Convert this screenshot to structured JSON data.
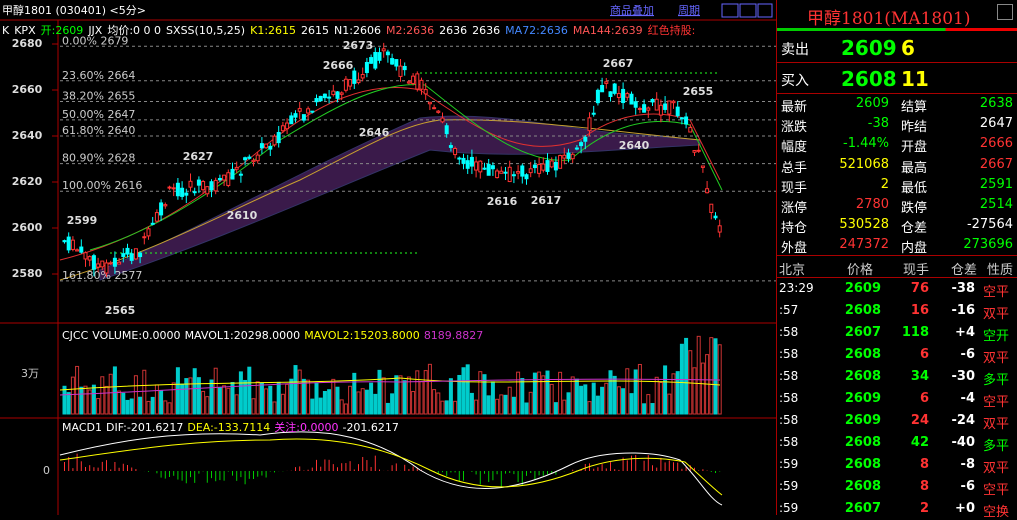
{
  "header": {
    "title": "甲醇1801 (030401) <5分>",
    "links": [
      "商品叠加",
      "周期"
    ]
  },
  "chart": {
    "indicator": [
      "K",
      "KPX",
      "开:2609",
      "JJX",
      "均价:0 0 0",
      "SXSS(10,5,25)",
      "K1:2615",
      "2615",
      "N1:2606",
      "M2:2636",
      "2636",
      "2636",
      "MA72:2636",
      "MA144:2639",
      "红色持股:"
    ],
    "y_axis": [
      2680,
      2660,
      2640,
      2620,
      2600,
      2580
    ],
    "fib": [
      {
        "label": "0.00% 2679",
        "value": 2679
      },
      {
        "label": "23.60% 2664",
        "value": 2664
      },
      {
        "label": "38.20% 2655",
        "value": 2655
      },
      {
        "label": "50.00% 2647",
        "value": 2647
      },
      {
        "label": "61.80% 2640",
        "value": 2640
      },
      {
        "label": "80.90% 2628",
        "value": 2628
      },
      {
        "label": "100.00% 2616",
        "value": 2616
      },
      {
        "label": "161.80% 2577",
        "value": 2577
      }
    ],
    "price_labels": [
      "2673",
      "2666",
      "2667",
      "2655",
      "2646",
      "2640",
      "2627",
      "2610",
      "2599",
      "2616",
      "2617",
      "2565"
    ],
    "volume_header": [
      "CJCC",
      "VOLUME:0.0000",
      "MAVOL1:20298.0000",
      "MAVOL2:15203.8000",
      "8189.8827"
    ],
    "volume_axis": "3万",
    "macd_header": [
      "MACD1",
      "DIF:-201.6217",
      "DEA:-133.7114",
      "关注:0.0000",
      "-201.6217"
    ],
    "macd_axis": "0"
  },
  "quote": {
    "title": "甲醇1801(MA1801)",
    "sell": {
      "label": "卖出",
      "price": "2609",
      "volume": "6"
    },
    "buy": {
      "label": "买入",
      "price": "2608",
      "volume": "11"
    },
    "rows": [
      [
        "最新",
        "2609",
        "结算",
        "2638"
      ],
      [
        "涨跌",
        "-38",
        "昨结",
        "2647"
      ],
      [
        "幅度",
        "-1.44%",
        "开盘",
        "2666"
      ],
      [
        "总手",
        "521068",
        "最高",
        "2667"
      ],
      [
        "现手",
        "2",
        "最低",
        "2591"
      ],
      [
        "涨停",
        "2780",
        "跌停",
        "2514"
      ],
      [
        "持仓",
        "530528",
        "仓差",
        "-27564"
      ],
      [
        "外盘",
        "247372",
        "内盘",
        "273696"
      ]
    ],
    "tick_header": [
      "北京",
      "价格",
      "现手",
      "仓差",
      "性质"
    ],
    "ticks": [
      [
        "23:29",
        "2609",
        "76",
        "-38",
        "空平"
      ],
      [
        ":57",
        "2608",
        "16",
        "-16",
        "双平"
      ],
      [
        ":58",
        "2607",
        "118",
        "+4",
        "空开"
      ],
      [
        ":58",
        "2608",
        "6",
        "-6",
        "双平"
      ],
      [
        ":58",
        "2608",
        "34",
        "-30",
        "多平"
      ],
      [
        ":58",
        "2609",
        "6",
        "-4",
        "空平"
      ],
      [
        ":58",
        "2609",
        "24",
        "-24",
        "双平"
      ],
      [
        ":58",
        "2608",
        "42",
        "-40",
        "多平"
      ],
      [
        ":59",
        "2608",
        "8",
        "-8",
        "双平"
      ],
      [
        ":59",
        "2608",
        "8",
        "-6",
        "空平"
      ],
      [
        ":59",
        "2607",
        "2",
        "+0",
        "空换"
      ]
    ]
  }
}
